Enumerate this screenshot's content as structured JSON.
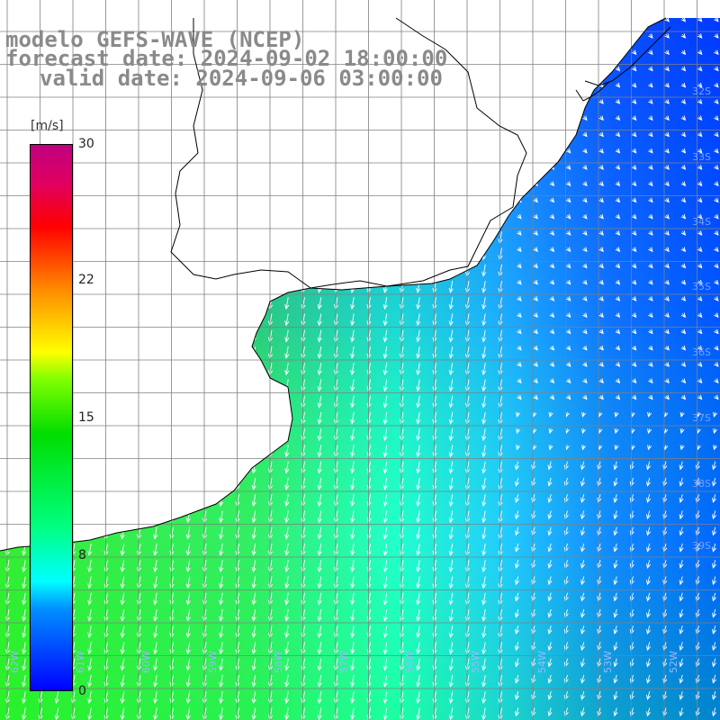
{
  "title": {
    "line1": "modelo GEFS-WAVE (NCEP)",
    "line2": "forecast date: 2024-09-02 18:00:00",
    "line3": "valid date: 2024-09-06 03:00:00"
  },
  "colorbar": {
    "unit": "[m/s]",
    "ticks": [
      "30",
      "22",
      "15",
      "8",
      "0"
    ],
    "colors": [
      "#0000ff",
      "#00ffff",
      "#00dd00",
      "#ffff00",
      "#ff0000",
      "#c00080"
    ]
  },
  "lat_labels": [
    "32S",
    "33S",
    "34S",
    "35S",
    "36S",
    "37S",
    "38S",
    "39S"
  ],
  "lon_labels": [
    "62W",
    "61W",
    "60W",
    "59W",
    "58W",
    "57W",
    "56W",
    "55W",
    "54W",
    "53W",
    "52W"
  ],
  "colors": {
    "land": "#ffffff",
    "coast": "#000000",
    "grid": "#808080",
    "arrow": "#ffffff"
  }
}
